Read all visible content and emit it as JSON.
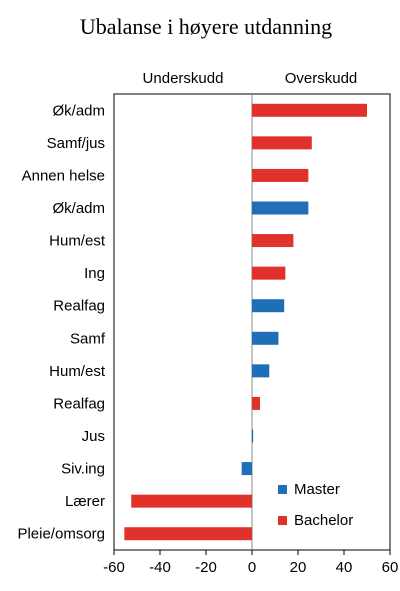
{
  "chart_data": {
    "type": "bar",
    "orientation": "horizontal",
    "title": "Ubalanse i høyere utdanning",
    "left_header": "Underskudd",
    "right_header": "Overskudd",
    "xlim": [
      -60,
      60
    ],
    "xticks": [
      "-60",
      "-40",
      "-20",
      "0",
      "20",
      "40",
      "60"
    ],
    "grid": false,
    "legend_position": "bottom-right",
    "series": [
      {
        "name": "Master",
        "color": "#1f6fb8"
      },
      {
        "name": "Bachelor",
        "color": "#e0312b"
      }
    ],
    "bars": [
      {
        "label": "Øk/adm",
        "value": 50,
        "series": "Bachelor"
      },
      {
        "label": "Samf/jus",
        "value": 26,
        "series": "Bachelor"
      },
      {
        "label": "Annen helse",
        "value": 24.5,
        "series": "Bachelor"
      },
      {
        "label": "Øk/adm",
        "value": 24.5,
        "series": "Master"
      },
      {
        "label": "Hum/est",
        "value": 18,
        "series": "Bachelor"
      },
      {
        "label": "Ing",
        "value": 14.5,
        "series": "Bachelor"
      },
      {
        "label": "Realfag",
        "value": 14,
        "series": "Master"
      },
      {
        "label": "Samf",
        "value": 11.5,
        "series": "Master"
      },
      {
        "label": "Hum/est",
        "value": 7.5,
        "series": "Master"
      },
      {
        "label": "Realfag",
        "value": 3.5,
        "series": "Bachelor"
      },
      {
        "label": "Jus",
        "value": 0.5,
        "series": "Master"
      },
      {
        "label": "Siv.ing",
        "value": -4.5,
        "series": "Master"
      },
      {
        "label": "Lærer",
        "value": -52.5,
        "series": "Bachelor"
      },
      {
        "label": "Pleie/omsorg",
        "value": -55.5,
        "series": "Bachelor"
      }
    ]
  }
}
